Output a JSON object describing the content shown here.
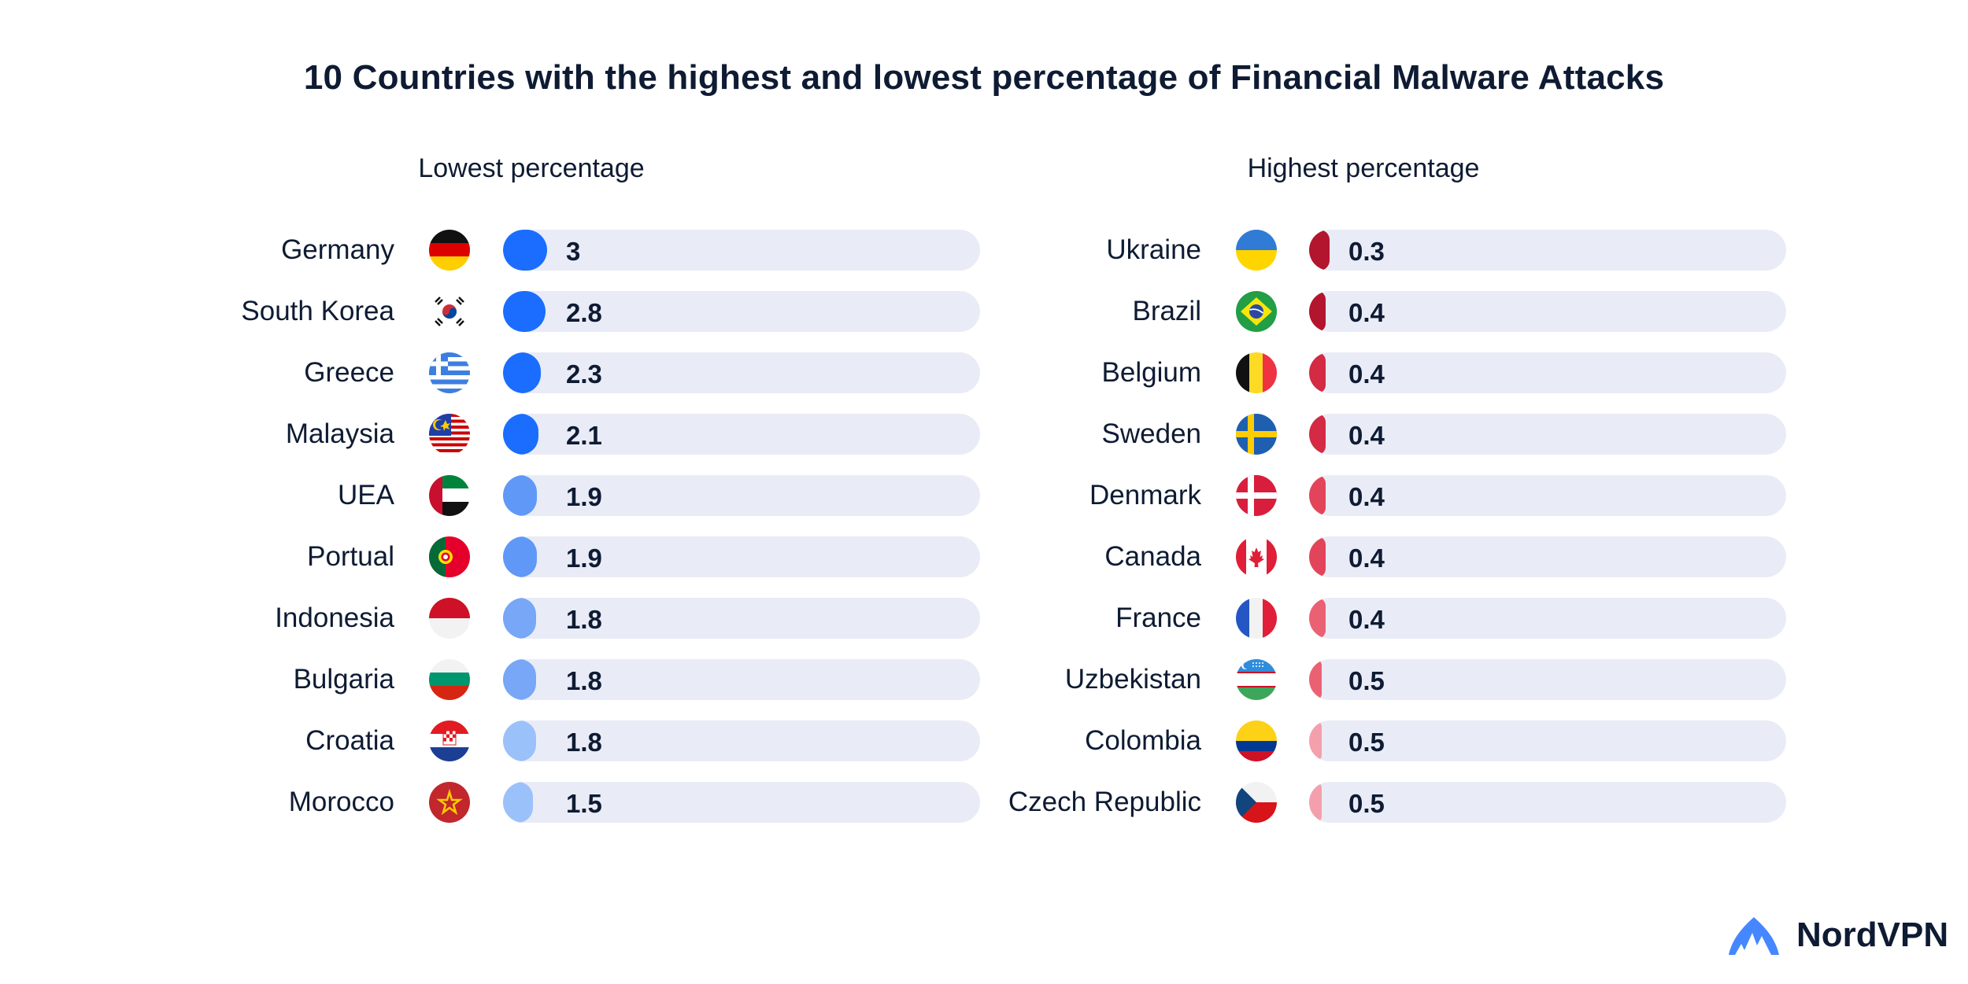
{
  "chart_data": {
    "title": "10 Countries with the highest and lowest percentage of Financial Malware Attacks",
    "type": "bar",
    "panels": [
      {
        "subtitle": "Lowest percentage",
        "colors": [
          "#1a6dff",
          "#1a6dff",
          "#1a6dff",
          "#1a6dff",
          "#5f98f7",
          "#5f98f7",
          "#77a7f6",
          "#77a7f6",
          "#9bc1fb",
          "#9bc1fb"
        ],
        "rows": [
          {
            "country": "Germany",
            "flag": "germany-flag",
            "value": 3,
            "label": "3"
          },
          {
            "country": "South Korea",
            "flag": "south-korea-flag",
            "value": 2.8,
            "label": "2.8"
          },
          {
            "country": "Greece",
            "flag": "greece-flag",
            "value": 2.3,
            "label": "2.3"
          },
          {
            "country": "Malaysia",
            "flag": "malaysia-flag",
            "value": 2.1,
            "label": "2.1"
          },
          {
            "country": "UEA",
            "flag": "uae-flag",
            "value": 1.9,
            "label": "1.9"
          },
          {
            "country": "Portual",
            "flag": "portugal-flag",
            "value": 1.9,
            "label": "1.9"
          },
          {
            "country": "Indonesia",
            "flag": "indonesia-flag",
            "value": 1.8,
            "label": "1.8"
          },
          {
            "country": "Bulgaria",
            "flag": "bulgaria-flag",
            "value": 1.8,
            "label": "1.8"
          },
          {
            "country": "Croatia",
            "flag": "croatia-flag",
            "value": 1.8,
            "label": "1.8"
          },
          {
            "country": "Morocco",
            "flag": "morocco-flag",
            "value": 1.5,
            "label": "1.5"
          }
        ]
      },
      {
        "subtitle": "Highest percentage",
        "colors": [
          "#b3152e",
          "#b3152e",
          "#d42a44",
          "#d42a44",
          "#e2455a",
          "#e2455a",
          "#ea6174",
          "#ea6174",
          "#f4a0ac",
          "#f4a0ac"
        ],
        "rows": [
          {
            "country": "Ukraine",
            "flag": "ukraine-flag",
            "value": 0.3,
            "label": "0.3"
          },
          {
            "country": "Brazil",
            "flag": "brazil-flag",
            "value": 0.4,
            "label": "0.4"
          },
          {
            "country": "Belgium",
            "flag": "belgium-flag",
            "value": 0.4,
            "label": "0.4"
          },
          {
            "country": "Sweden",
            "flag": "sweden-flag",
            "value": 0.4,
            "label": "0.4"
          },
          {
            "country": "Denmark",
            "flag": "denmark-flag",
            "value": 0.4,
            "label": "0.4"
          },
          {
            "country": "Canada",
            "flag": "canada-flag",
            "value": 0.4,
            "label": "0.4"
          },
          {
            "country": "France",
            "flag": "france-flag",
            "value": 0.4,
            "label": "0.4"
          },
          {
            "country": "Uzbekistan",
            "flag": "uzbekistan-flag",
            "value": 0.5,
            "label": "0.5"
          },
          {
            "country": "Colombia",
            "flag": "colombia-flag",
            "value": 0.5,
            "label": "0.5"
          },
          {
            "country": "Czech Republic",
            "flag": "czech-republic-flag",
            "value": 0.5,
            "label": "0.5"
          }
        ]
      }
    ]
  },
  "brand": {
    "name": "NordVPN",
    "logo": "nordvpn-mountain-logo"
  }
}
